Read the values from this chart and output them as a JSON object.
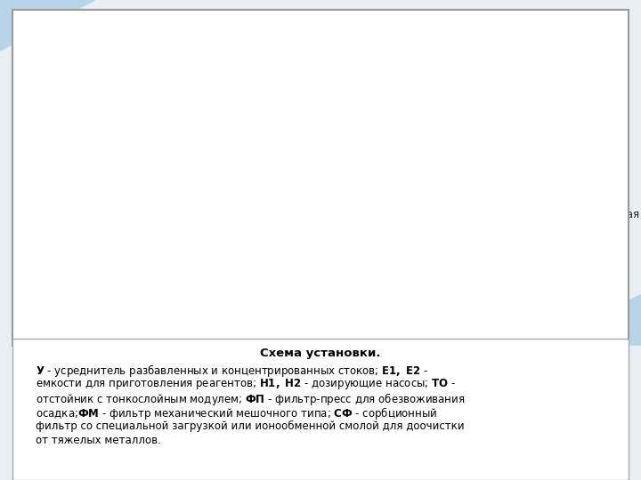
{
  "bg_color": "#f0f4f8",
  "diagram_bg": "#ffffff",
  "diagram_border": "#cccccc",
  "dashed_box_color": "#5588bb",
  "arrow_color": "#3366aa",
  "red_arrow_color": "#cc2222",
  "element_fill": "#aaaaaa",
  "element_edge": "#555555",
  "title": "Схема установки.",
  "legend_lines": [
    "У - усреднитель разбавленных и концентрированных стоков; Е1, Е2 -",
    "емкости для приготовления реагентов; Н1, Н2 - дозирующие насосы; ТО -",
    "отстойник с тонкослойным модулем; ФП - фильтр-пресс для обезвоживания",
    "осадка;ФМ - фильтр механический мешочного типа; СФ - сорбционный",
    "фильтр со специальной загрузкой или ионообменной смолой для доочистки",
    "от тяжелых металлов."
  ],
  "bold_words": [
    "У",
    "Е1, Е2",
    "Н1, Н2",
    "ТО",
    "ФП",
    "ФМ",
    "СФ"
  ]
}
